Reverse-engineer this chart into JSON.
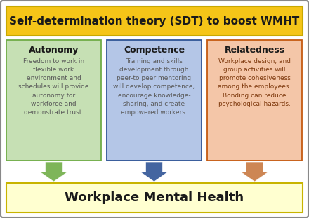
{
  "title": "Self-determination theory (SDT) to boost WMHT",
  "bottom_label": "Workplace Mental Health",
  "title_bg": "#f5c518",
  "title_border": "#c8a800",
  "title_color": "#1a1a1a",
  "bottom_bg": "#ffffd0",
  "bottom_border": "#c8b400",
  "bottom_color": "#1a1a1a",
  "outer_border": "#888888",
  "outer_bg": "#ffffff",
  "boxes": [
    {
      "heading": "Autonomy",
      "body": "Freedom to work in\nflexible work\nenvironment and\nschedules will provide\nautonomy for\nworkforce and\ndemonstrate trust.",
      "box_bg": "#c6e0b4",
      "box_border": "#70ad47",
      "heading_color": "#1a1a1a",
      "body_color": "#595959",
      "arrow_color": "#70ad47"
    },
    {
      "heading": "Competence",
      "body": "Training and skills\ndevelopment through\npeer-to peer mentoring\nwill develop competence,\nencourage knowledge-\nsharing, and create\nempowered workers.",
      "box_bg": "#b4c6e7",
      "box_border": "#2f5496",
      "heading_color": "#1a1a1a",
      "body_color": "#595959",
      "arrow_color": "#2f5496"
    },
    {
      "heading": "Relatedness",
      "body": "Workplace design, and\ngroup activities will\npromote cohesiveness\namong the employees.\nBonding can reduce\npsychological hazards.",
      "box_bg": "#f4c6a8",
      "box_border": "#c55a11",
      "heading_color": "#1a1a1a",
      "body_color": "#7f3a0e",
      "arrow_color": "#c87941"
    }
  ]
}
